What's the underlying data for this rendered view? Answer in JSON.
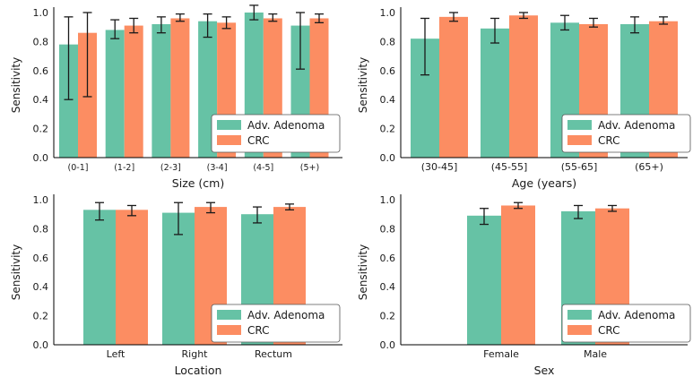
{
  "colors": {
    "adenoma": "#66c2a5",
    "crc": "#fc8d62",
    "axis": "#000000",
    "errorbar": "#1a1a1a"
  },
  "legend": {
    "placement": "lower-right"
  },
  "chart_data": [
    {
      "type": "bar",
      "xlabel": "Size (cm)",
      "ylabel": "Sensitivity",
      "ylim": [
        0.0,
        1.0
      ],
      "yticks": [
        "0.0",
        "0.2",
        "0.4",
        "0.6",
        "0.8",
        "1.0"
      ],
      "categories": [
        "(0-1]",
        "(1-2]",
        "(2-3]",
        "(3-4]",
        "(4-5]",
        "(5+)"
      ],
      "series": [
        {
          "name": "Adv. Adenoma",
          "values": [
            0.78,
            0.88,
            0.92,
            0.94,
            1.0,
            0.91
          ],
          "err_low": [
            0.4,
            0.82,
            0.86,
            0.83,
            0.95,
            0.61
          ],
          "err_high": [
            0.97,
            0.95,
            0.97,
            0.99,
            1.05,
            1.0
          ]
        },
        {
          "name": "CRC",
          "values": [
            0.86,
            0.91,
            0.96,
            0.93,
            0.96,
            0.96
          ],
          "err_low": [
            0.42,
            0.86,
            0.94,
            0.89,
            0.94,
            0.93
          ],
          "err_high": [
            1.0,
            0.96,
            0.99,
            0.97,
            0.99,
            0.99
          ]
        }
      ]
    },
    {
      "type": "bar",
      "xlabel": "Age (years)",
      "ylabel": "Sensitivity",
      "ylim": [
        0.0,
        1.0
      ],
      "yticks": [
        "0.0",
        "0.2",
        "0.4",
        "0.6",
        "0.8",
        "1.0"
      ],
      "categories": [
        "(30-45]",
        "(45-55]",
        "(55-65]",
        "(65+)"
      ],
      "series": [
        {
          "name": "Adv. Adenoma",
          "values": [
            0.82,
            0.89,
            0.93,
            0.92
          ],
          "err_low": [
            0.57,
            0.79,
            0.88,
            0.86
          ],
          "err_high": [
            0.96,
            0.96,
            0.98,
            0.97
          ]
        },
        {
          "name": "CRC",
          "values": [
            0.97,
            0.98,
            0.92,
            0.94
          ],
          "err_low": [
            0.94,
            0.96,
            0.9,
            0.92
          ],
          "err_high": [
            1.0,
            1.0,
            0.96,
            0.97
          ]
        }
      ]
    },
    {
      "type": "bar",
      "xlabel": "Location",
      "ylabel": "Sensitivity",
      "ylim": [
        0.0,
        1.0
      ],
      "yticks": [
        "0.0",
        "0.2",
        "0.4",
        "0.6",
        "0.8",
        "1.0"
      ],
      "categories": [
        "Left",
        "Right",
        "Rectum"
      ],
      "series": [
        {
          "name": "Adv. Adenoma",
          "values": [
            0.93,
            0.91,
            0.9
          ],
          "err_low": [
            0.86,
            0.76,
            0.84
          ],
          "err_high": [
            0.98,
            0.98,
            0.95
          ]
        },
        {
          "name": "CRC",
          "values": [
            0.93,
            0.95,
            0.95
          ],
          "err_low": [
            0.89,
            0.91,
            0.93
          ],
          "err_high": [
            0.96,
            0.98,
            0.97
          ]
        }
      ]
    },
    {
      "type": "bar",
      "xlabel": "Sex",
      "ylabel": "Sensitivity",
      "ylim": [
        0.0,
        1.0
      ],
      "yticks": [
        "0.0",
        "0.2",
        "0.4",
        "0.6",
        "0.8",
        "1.0"
      ],
      "categories": [
        "Female",
        "Male"
      ],
      "series": [
        {
          "name": "Adv. Adenoma",
          "values": [
            0.89,
            0.92
          ],
          "err_low": [
            0.83,
            0.87
          ],
          "err_high": [
            0.94,
            0.96
          ]
        },
        {
          "name": "CRC",
          "values": [
            0.96,
            0.94
          ],
          "err_low": [
            0.94,
            0.92
          ],
          "err_high": [
            0.98,
            0.96
          ]
        }
      ]
    }
  ]
}
